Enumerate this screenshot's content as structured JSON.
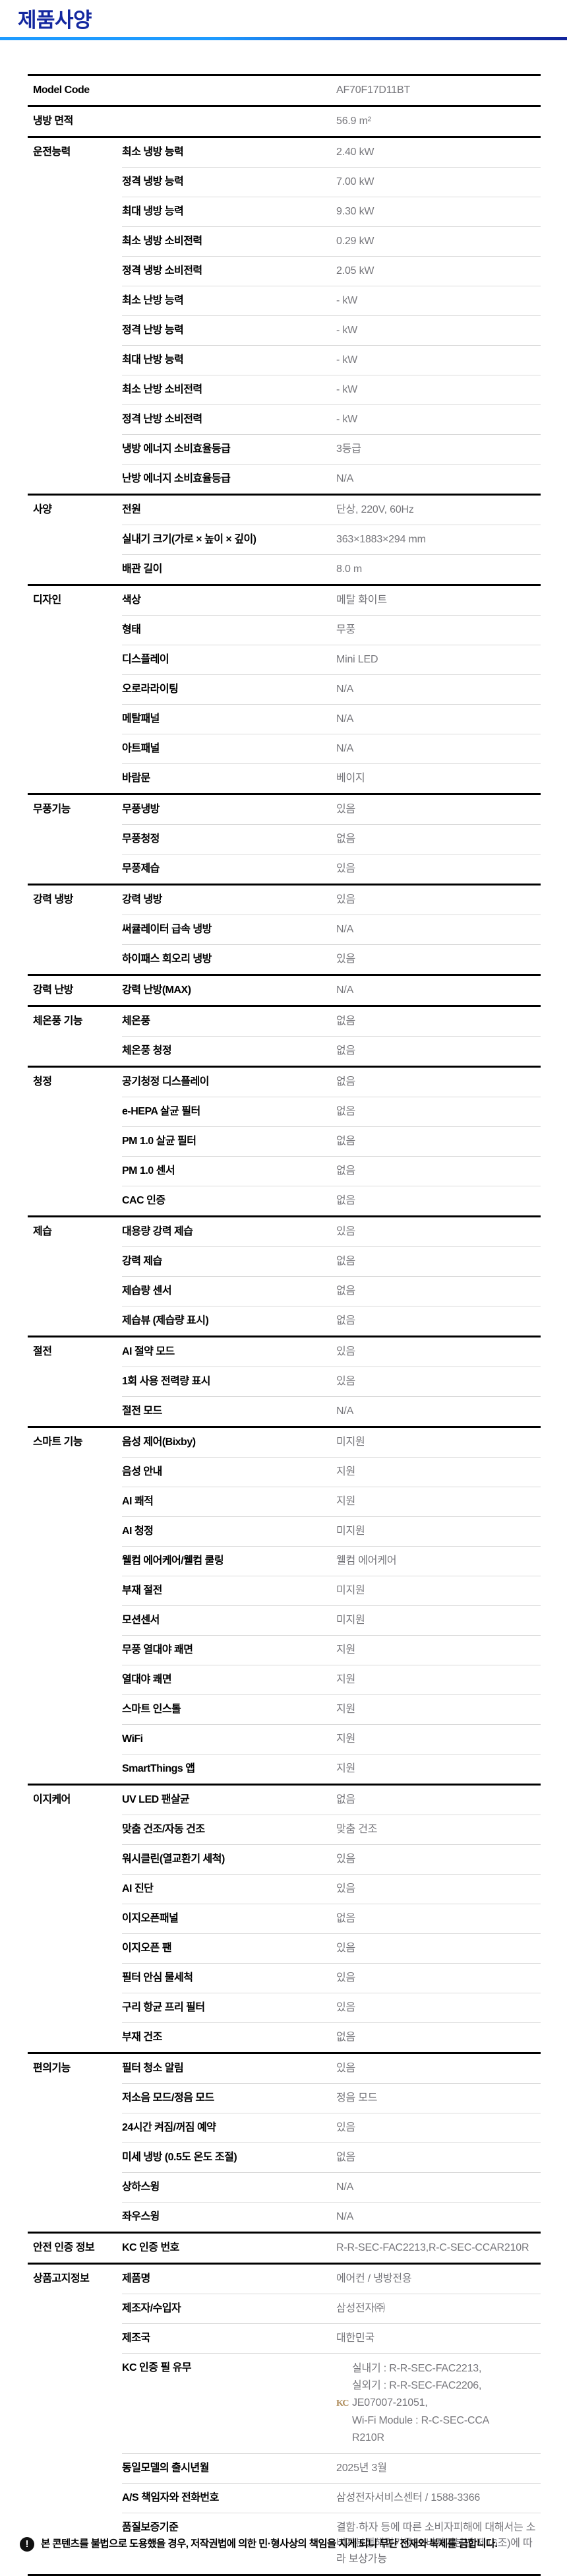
{
  "page": {
    "title": "제품사양",
    "footer_notice": "본 콘텐츠를 불법으로 도용했을 경우, 저작권법에 의한 민·형사상의 책임을 지게 되니 무단 전재와 복제를 금합니다.",
    "colors": {
      "title_color": "#1428a0",
      "accent_start": "#1e9bff",
      "accent_end": "#12249b",
      "value_color": "#77777c",
      "thin_line": "#d9d9d9",
      "thick_line": "#000000",
      "kc_color": "#ae8c5a"
    }
  },
  "table": {
    "kc_mark_glyph": "KC",
    "sections": [
      {
        "category": "Model Code",
        "rows": [
          {
            "label": "",
            "value": "AF70F17D11BT"
          }
        ]
      },
      {
        "category": "냉방 면적",
        "rows": [
          {
            "label": "",
            "value": "56.9 m²"
          }
        ]
      },
      {
        "category": "운전능력",
        "rows": [
          {
            "label": "최소 냉방 능력",
            "value": "2.40 kW"
          },
          {
            "label": "정격 냉방 능력",
            "value": "7.00 kW"
          },
          {
            "label": "최대 냉방 능력",
            "value": "9.30 kW"
          },
          {
            "label": "최소 냉방 소비전력",
            "value": "0.29 kW"
          },
          {
            "label": "정격 냉방 소비전력",
            "value": "2.05 kW"
          },
          {
            "label": "최소 난방 능력",
            "value": "- kW"
          },
          {
            "label": "정격 난방 능력",
            "value": "- kW"
          },
          {
            "label": "최대 난방 능력",
            "value": "- kW"
          },
          {
            "label": "최소 난방 소비전력",
            "value": "- kW"
          },
          {
            "label": "정격 난방 소비전력",
            "value": "- kW"
          },
          {
            "label": "냉방 에너지 소비효율등급",
            "value": "3등급"
          },
          {
            "label": "난방 에너지 소비효율등급",
            "value": "N/A"
          }
        ]
      },
      {
        "category": "사양",
        "rows": [
          {
            "label": "전원",
            "value": "단상, 220V, 60Hz"
          },
          {
            "label": "실내기 크기(가로 × 높이 × 깊이)",
            "value": "363×1883×294 mm"
          },
          {
            "label": "배관 길이",
            "value": "8.0 m"
          }
        ]
      },
      {
        "category": "디자인",
        "rows": [
          {
            "label": "색상",
            "value": "메탈 화이트"
          },
          {
            "label": "형태",
            "value": "무풍"
          },
          {
            "label": "디스플레이",
            "value": "Mini LED"
          },
          {
            "label": "오로라라이팅",
            "value": "N/A"
          },
          {
            "label": "메탈패널",
            "value": "N/A"
          },
          {
            "label": "아트패널",
            "value": "N/A"
          },
          {
            "label": "바람문",
            "value": "베이지"
          }
        ]
      },
      {
        "category": "무풍기능",
        "rows": [
          {
            "label": "무풍냉방",
            "value": "있음"
          },
          {
            "label": "무풍청정",
            "value": "없음"
          },
          {
            "label": "무풍제습",
            "value": "있음"
          }
        ]
      },
      {
        "category": "강력 냉방",
        "rows": [
          {
            "label": "강력 냉방",
            "value": "있음"
          },
          {
            "label": "써큘레이터 급속 냉방",
            "value": "N/A"
          },
          {
            "label": "하이패스 회오리 냉방",
            "value": "있음"
          }
        ]
      },
      {
        "category": "강력 난방",
        "rows": [
          {
            "label": "강력 난방(MAX)",
            "value": "N/A"
          }
        ]
      },
      {
        "category": "체온풍 기능",
        "rows": [
          {
            "label": "체온풍",
            "value": "없음"
          },
          {
            "label": "체온풍 청정",
            "value": "없음"
          }
        ]
      },
      {
        "category": "청정",
        "rows": [
          {
            "label": "공기청정 디스플레이",
            "value": "없음"
          },
          {
            "label": "e-HEPA 살균 필터",
            "value": "없음"
          },
          {
            "label": "PM 1.0 살균 필터",
            "value": "없음"
          },
          {
            "label": "PM 1.0 센서",
            "value": "없음"
          },
          {
            "label": "CAC 인증",
            "value": "없음"
          }
        ]
      },
      {
        "category": "제습",
        "rows": [
          {
            "label": "대용량 강력 제습",
            "value": "있음"
          },
          {
            "label": "강력 제습",
            "value": "없음"
          },
          {
            "label": "제습량 센서",
            "value": "없음"
          },
          {
            "label": "제습뷰 (제습량 표시)",
            "value": "없음"
          }
        ]
      },
      {
        "category": "절전",
        "rows": [
          {
            "label": "AI 절약 모드",
            "value": "있음"
          },
          {
            "label": "1회 사용 전력량 표시",
            "value": "있음"
          },
          {
            "label": "절전 모드",
            "value": "N/A"
          }
        ]
      },
      {
        "category": "스마트 기능",
        "rows": [
          {
            "label": "음성 제어(Bixby)",
            "value": "미지원"
          },
          {
            "label": "음성 안내",
            "value": "지원"
          },
          {
            "label": "AI 쾌적",
            "value": "지원"
          },
          {
            "label": "AI 청정",
            "value": "미지원"
          },
          {
            "label": "웰컴 에어케어/웰컴 쿨링",
            "value": "웰컴 에어케어"
          },
          {
            "label": "부재 절전",
            "value": "미지원"
          },
          {
            "label": "모션센서",
            "value": "미지원"
          },
          {
            "label": "무풍 열대야 쾌면",
            "value": "지원"
          },
          {
            "label": "열대야 쾌면",
            "value": "지원"
          },
          {
            "label": "스마트 인스톨",
            "value": "지원"
          },
          {
            "label": "WiFi",
            "value": "지원"
          },
          {
            "label": "SmartThings 앱",
            "value": "지원"
          }
        ]
      },
      {
        "category": "이지케어",
        "rows": [
          {
            "label": "UV LED 팬살균",
            "value": "없음"
          },
          {
            "label": "맞춤 건조/자동 건조",
            "value": "맞춤 건조"
          },
          {
            "label": "워시클린(열교환기 세척)",
            "value": "있음"
          },
          {
            "label": "AI 진단",
            "value": "있음"
          },
          {
            "label": "이지오픈패널",
            "value": "없음"
          },
          {
            "label": "이지오픈 팬",
            "value": "있음"
          },
          {
            "label": "필터 안심 물세척",
            "value": "있음"
          },
          {
            "label": "구리 항균 프리 필터",
            "value": "있음"
          },
          {
            "label": "부재 건조",
            "value": "없음"
          }
        ]
      },
      {
        "category": "편의기능",
        "rows": [
          {
            "label": "필터 청소 알림",
            "value": "있음"
          },
          {
            "label": "저소음 모드/정음 모드",
            "value": "정음 모드"
          },
          {
            "label": "24시간 켜짐/꺼짐 예약",
            "value": "있음"
          },
          {
            "label": "미세 냉방 (0.5도 온도 조절)",
            "value": "없음"
          },
          {
            "label": "상하스윙",
            "value": "N/A"
          },
          {
            "label": "좌우스윙",
            "value": "N/A"
          }
        ]
      },
      {
        "category": "안전 인증 정보",
        "rows": [
          {
            "label": "KC 인증 번호",
            "value": "R-R-SEC-FAC2213,R-C-SEC-CCAR210R"
          }
        ]
      },
      {
        "category": "상품고지정보",
        "rows": [
          {
            "label": "제품명",
            "value": "에어컨 / 냉방전용"
          },
          {
            "label": "제조자/수입자",
            "value": "삼성전자㈜"
          },
          {
            "label": "제조국",
            "value": "대한민국"
          },
          {
            "label": "KC 인증 필 유무",
            "value_lines": [
              {
                "text": "실내기 : R-R-SEC-FAC2213,",
                "indent": true
              },
              {
                "text": "실외기 : R-R-SEC-FAC2206,",
                "indent": true
              },
              {
                "text": "JE07007-21051,",
                "icon": "kc-mark"
              },
              {
                "text": "Wi-Fi Module : R-C-SEC-CCA",
                "indent": true
              },
              {
                "text": "R210R",
                "indent": true
              }
            ]
          },
          {
            "label": "동일모델의 출시년월",
            "value": "2025년 3월"
          },
          {
            "label": "A/S 책임자와 전화번호",
            "value": "삼성전자서비스센터 / 1588-3366"
          },
          {
            "label": "품질보증기준",
            "value": "결함·하자 등에 따른 소비자피해에 대해서는 소비자분쟁해결기준(소비자기본법 제16조)에 따라 보상가능"
          }
        ]
      }
    ]
  }
}
